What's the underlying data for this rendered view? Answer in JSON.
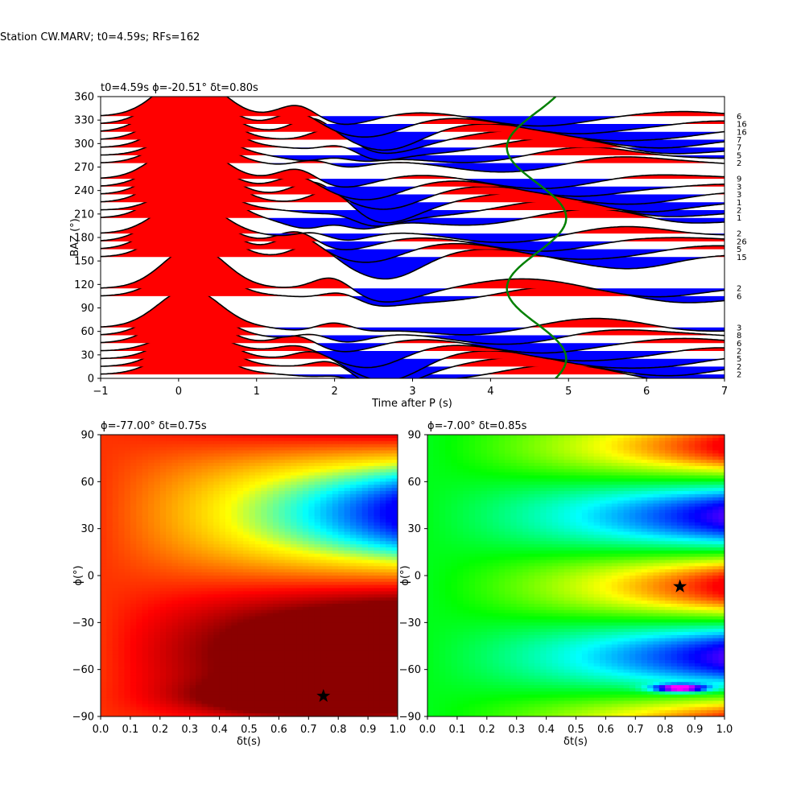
{
  "figure_title": "Station CW.MARV; t0=4.59s; RFs=162",
  "chart_data": [
    {
      "type": "wiggle",
      "title": "t0=4.59s ϕ=-20.51° δt=0.80s",
      "xlabel": "Time after P (s)",
      "ylabel": "BAZ (°)",
      "xlim": [
        -1,
        7
      ],
      "ylim": [
        0,
        360
      ],
      "xticks": [
        -1,
        0,
        1,
        2,
        3,
        4,
        5,
        6,
        7
      ],
      "yticks": [
        0,
        30,
        60,
        90,
        120,
        150,
        180,
        210,
        240,
        270,
        300,
        330,
        360
      ],
      "positive_fill": "#ff0000",
      "negative_fill": "#0000ff",
      "curve_color": "#008000",
      "traces": [
        {
          "baz": 5,
          "count": 2,
          "p": 0.8,
          "n": 0.4
        },
        {
          "baz": 15,
          "count": 2,
          "p": 0.9,
          "n": 0.5
        },
        {
          "baz": 25,
          "count": 5,
          "p": 0.8,
          "n": 0.6
        },
        {
          "baz": 35,
          "count": 2,
          "p": 0.6,
          "n": 0.5
        },
        {
          "baz": 45,
          "count": 6,
          "p": 0.9,
          "n": 0.3
        },
        {
          "baz": 55,
          "count": 8,
          "p": 1.0,
          "n": 0.4
        },
        {
          "baz": 65,
          "count": 3,
          "p": 1.1,
          "n": 0.3
        },
        {
          "baz": 105,
          "count": 6,
          "p": 1.0,
          "n": 0.3
        },
        {
          "baz": 115,
          "count": 2,
          "p": 1.2,
          "n": 0.3
        },
        {
          "baz": 155,
          "count": 15,
          "p": 1.2,
          "n": 0.6
        },
        {
          "baz": 165,
          "count": 5,
          "p": 1.3,
          "n": 0.4
        },
        {
          "baz": 175,
          "count": 26,
          "p": 1.1,
          "n": 0.3
        },
        {
          "baz": 185,
          "count": 2,
          "p": 1.0,
          "n": 0.4
        },
        {
          "baz": 205,
          "count": 1,
          "p": 1.3,
          "n": 0.7
        },
        {
          "baz": 215,
          "count": 2,
          "p": 0.8,
          "n": 0.5
        },
        {
          "baz": 225,
          "count": 1,
          "p": 1.4,
          "n": 0.5
        },
        {
          "baz": 235,
          "count": 3,
          "p": 1.2,
          "n": 0.4
        },
        {
          "baz": 245,
          "count": 3,
          "p": 1.0,
          "n": 0.4
        },
        {
          "baz": 255,
          "count": 9,
          "p": 1.1,
          "n": 0.3
        },
        {
          "baz": 275,
          "count": 2,
          "p": 0.9,
          "n": 0.3
        },
        {
          "baz": 285,
          "count": 5,
          "p": 0.8,
          "n": 0.4
        },
        {
          "baz": 295,
          "count": 7,
          "p": 1.1,
          "n": 0.4
        },
        {
          "baz": 305,
          "count": 7,
          "p": 1.2,
          "n": 0.3
        },
        {
          "baz": 315,
          "count": 16,
          "p": 1.3,
          "n": 0.5
        },
        {
          "baz": 325,
          "count": 16,
          "p": 1.1,
          "n": 0.4
        },
        {
          "baz": 335,
          "count": 6,
          "p": 1.2,
          "n": 0.3
        }
      ],
      "model_curve": {
        "center_time": 4.59,
        "amplitude": 0.38,
        "period_deg": 180,
        "phase_deg": 160
      }
    },
    {
      "type": "heatmap",
      "title": "ϕ=-77.00° δt=0.75s",
      "xlabel": "δt(s)",
      "ylabel": "ϕ(°)",
      "xlim": [
        0.0,
        1.0
      ],
      "ylim": [
        -90,
        90
      ],
      "xticks": [
        0.0,
        0.1,
        0.2,
        0.3,
        0.4,
        0.5,
        0.6,
        0.7,
        0.8,
        0.9,
        1.0
      ],
      "yticks": [
        -90,
        -60,
        -30,
        0,
        30,
        60,
        90
      ],
      "colormap": [
        "#0000ff",
        "#00ffff",
        "#ffff00",
        "#ff8000",
        "#ff0000",
        "#8b0000"
      ],
      "best": {
        "dt": 0.75,
        "phi": -77
      }
    },
    {
      "type": "heatmap",
      "title": "ϕ=-7.00° δt=0.85s",
      "xlabel": "δt(s)",
      "ylabel": "ϕ(°)",
      "xlim": [
        0.0,
        1.0
      ],
      "ylim": [
        -90,
        90
      ],
      "xticks": [
        0.0,
        0.1,
        0.2,
        0.3,
        0.4,
        0.5,
        0.6,
        0.7,
        0.8,
        0.9,
        1.0
      ],
      "yticks": [
        -90,
        -60,
        -30,
        0,
        30,
        60,
        90
      ],
      "colormap": [
        "#ff00ff",
        "#0000ff",
        "#00ffff",
        "#00ff00",
        "#ffff00",
        "#ff0000"
      ],
      "best": {
        "dt": 0.85,
        "phi": -7
      },
      "minimum": {
        "dt": 0.85,
        "phi": -72
      }
    }
  ]
}
